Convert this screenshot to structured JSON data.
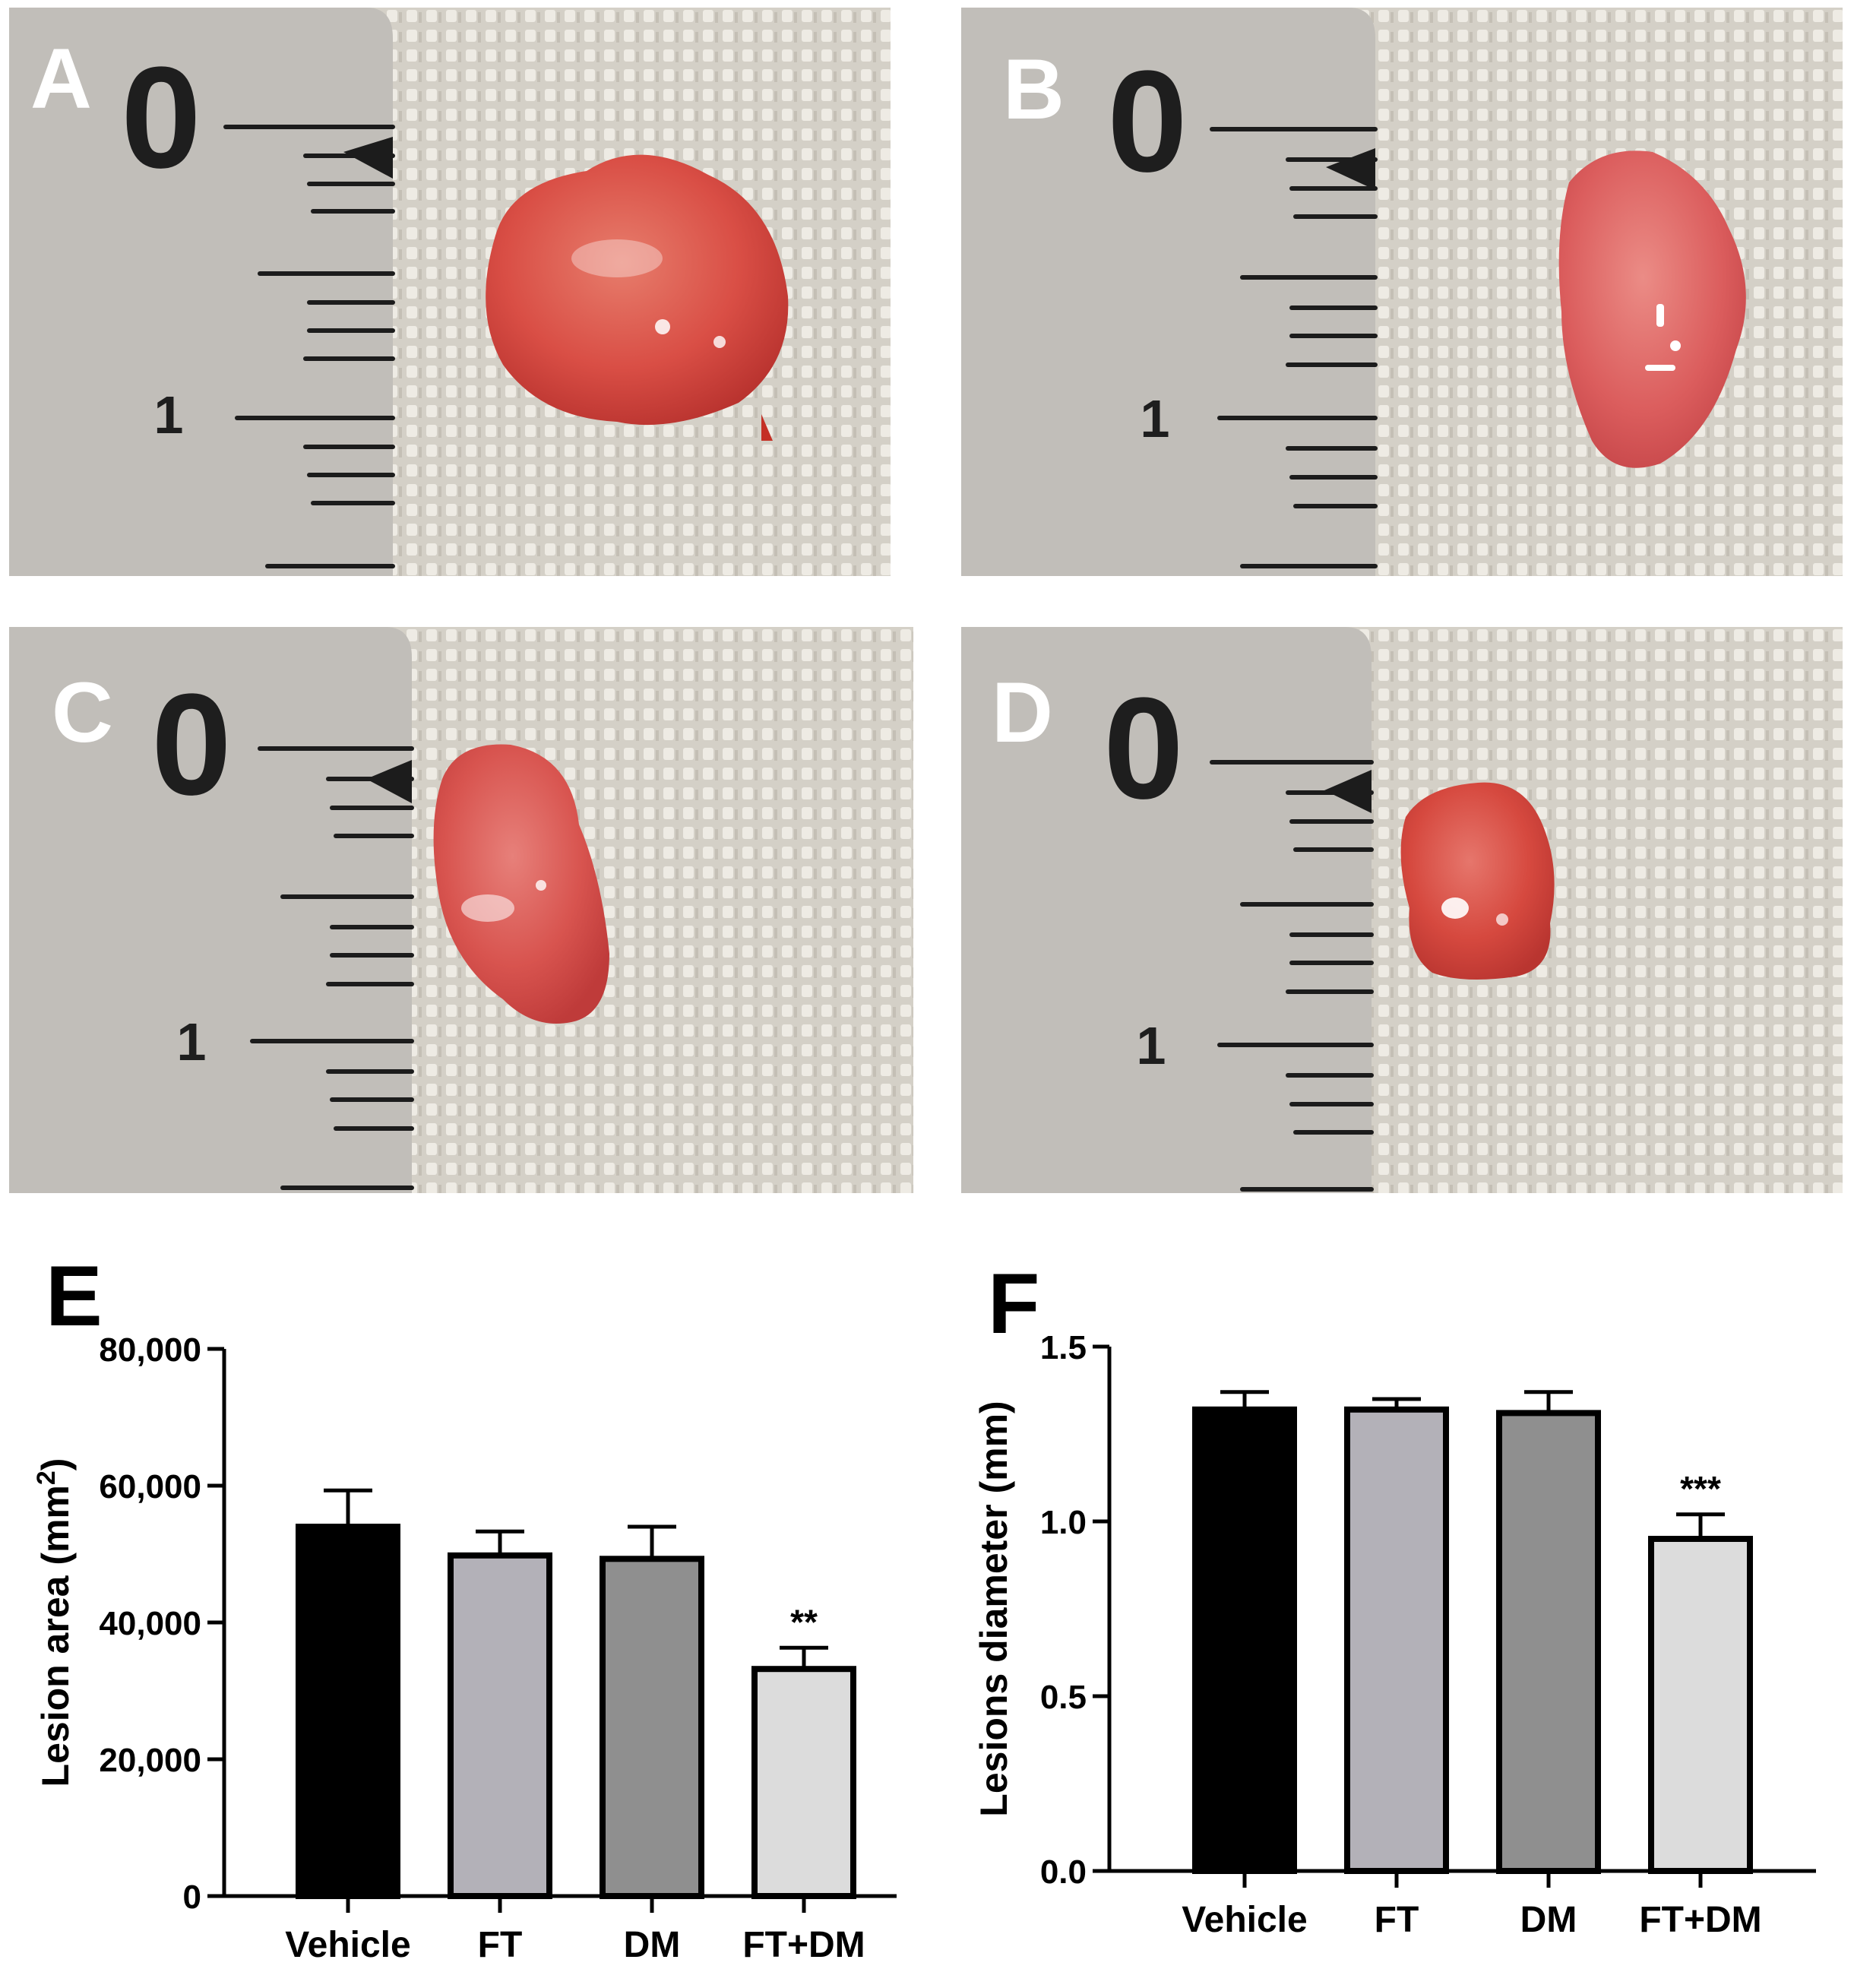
{
  "panels": {
    "A": "A",
    "B": "B",
    "C": "C",
    "D": "D",
    "E": "E",
    "F": "F"
  },
  "ruler_marks": {
    "zero": "0",
    "one": "1"
  },
  "colors": {
    "vehicle": "#000000",
    "ft": "#b3b1b8",
    "dm": "#8f8f8f",
    "ftdm": "#dcdcdc",
    "lesion": "#d9524a",
    "fabric": "#d8d4cc",
    "ruler": "#bdbab4"
  },
  "chart_data": [
    {
      "type": "bar",
      "panel": "E",
      "categories": [
        "Vehicle",
        "FT",
        "DM",
        "FT+DM"
      ],
      "values": [
        54000,
        49800,
        49300,
        33200
      ],
      "errors": [
        5300,
        3500,
        4700,
        3100
      ],
      "significance": [
        "",
        "",
        "",
        "**"
      ],
      "ylabel": "Lesion area (mm2)",
      "ylabel_main": "Lesion area (mm",
      "ylabel_sup": "2",
      "ylabel_end": ")",
      "ylim": [
        0,
        80000
      ],
      "yticks": [
        0,
        20000,
        40000,
        60000,
        80000
      ],
      "ytick_labels": [
        "0",
        "20,000",
        "40,000",
        "60,000",
        "80,000"
      ],
      "grid": false
    },
    {
      "type": "bar",
      "panel": "F",
      "categories": [
        "Vehicle",
        "FT",
        "DM",
        "FT+DM"
      ],
      "values": [
        1.32,
        1.32,
        1.31,
        0.95
      ],
      "errors": [
        0.05,
        0.03,
        0.06,
        0.07
      ],
      "significance": [
        "",
        "",
        "",
        "***"
      ],
      "ylabel": "Lesions diameter (mm)",
      "ylim": [
        0,
        1.5
      ],
      "yticks": [
        0,
        0.5,
        1.0,
        1.5
      ],
      "ytick_labels": [
        "0.0",
        "0.5",
        "1.0",
        "1.5"
      ],
      "grid": false
    }
  ]
}
